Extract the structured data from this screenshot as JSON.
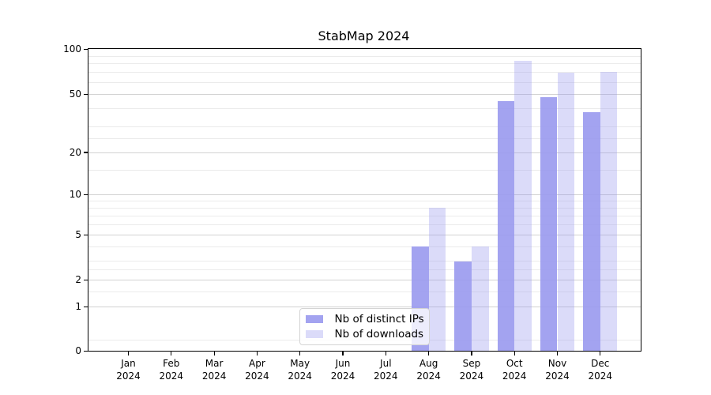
{
  "figure": {
    "title": "StabMap 2024"
  },
  "chart_data": {
    "type": "bar",
    "title": "StabMap 2024",
    "categories": [
      "Jan",
      "Feb",
      "Mar",
      "Apr",
      "May",
      "Jun",
      "Jul",
      "Aug",
      "Sep",
      "Oct",
      "Nov",
      "Dec"
    ],
    "category_year": "2024",
    "series": [
      {
        "name": "Nb of distinct IPs",
        "color": "rgba(153,153,238,0.9)",
        "values": [
          0,
          0,
          0,
          0,
          0,
          0,
          0,
          4,
          3,
          45,
          48,
          38
        ]
      },
      {
        "name": "Nb of downloads",
        "color": "rgba(153,153,238,0.35)",
        "values": [
          0,
          0,
          0,
          0,
          0,
          0,
          0,
          8,
          4,
          84,
          70,
          71
        ]
      }
    ],
    "xlabel": "",
    "ylabel": "",
    "ylim": [
      0,
      100
    ],
    "yscale": "log10(value+1)",
    "y_ticks": [
      0,
      1,
      2,
      5,
      10,
      20,
      50,
      100
    ],
    "y_minor_gridlines": [
      0.2,
      1.5,
      2.5,
      3,
      4,
      6,
      7,
      8,
      9,
      15,
      25,
      30,
      40,
      60,
      70,
      80,
      90
    ],
    "grid": "horizontal",
    "legend_position": "bottom-center"
  },
  "colors": {
    "bar_primary": "rgba(153,153,238,0.9)",
    "bar_secondary": "rgba(153,153,238,0.35)",
    "bar_primary_flat": "#a3a3f0",
    "bar_secondary_flat": "#dbdbf9",
    "grid_major": "#d2d2d2",
    "grid_minor": "#ebebeb",
    "axis": "#000000",
    "text": "#000000",
    "legend_border": "#d4d4d4"
  }
}
